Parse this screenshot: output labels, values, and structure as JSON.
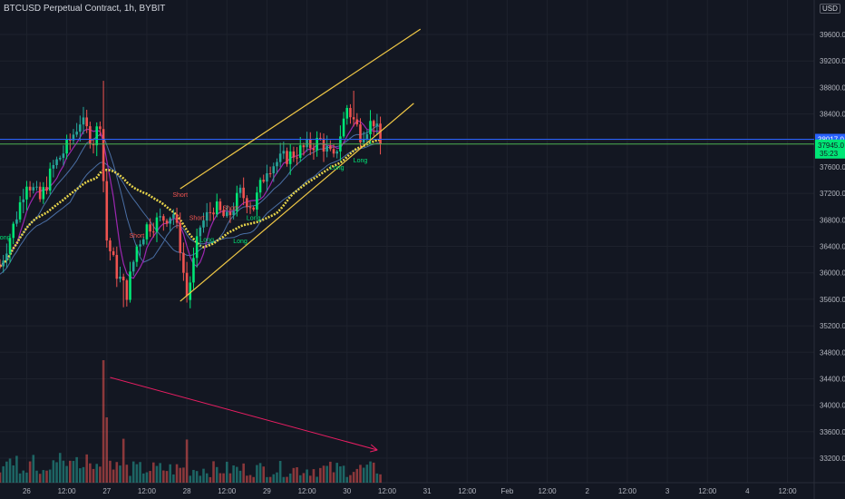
{
  "header": {
    "title": "BTCUSD Perpetual Contract, 1h, BYBIT"
  },
  "currency_unit": "USD",
  "colors": {
    "background": "#131722",
    "grid": "#1e222d",
    "bull": "#26a69a",
    "bull_bright": "#00e676",
    "bear": "#ef5350",
    "price_line_blue": "#2962ff",
    "price_line_green": "#4caf50",
    "trendline": "#f0c846",
    "ma_yellow": "#e6d34a",
    "ma_blue": "#4a6fa5",
    "ma_purple": "#9c27b0",
    "arrow": "#e91e63"
  },
  "price_tags": {
    "upper": "38017.0",
    "lower": "37945.0",
    "lower_sub": "35:23"
  },
  "chart_data": {
    "type": "candlestick",
    "title": "BTCUSD Perpetual Contract, 1h, BYBIT",
    "y_ticks": [
      "39600.0",
      "39200.0",
      "38800.0",
      "38400.0",
      "38000.0",
      "37600.0",
      "37200.0",
      "36800.0",
      "36400.0",
      "36000.0",
      "35600.0",
      "35200.0",
      "34800.0",
      "34400.0",
      "34000.0",
      "33600.0",
      "33200.0"
    ],
    "y_tick_values": [
      39600,
      39200,
      38800,
      38400,
      38000,
      37600,
      37200,
      36800,
      36400,
      36000,
      35600,
      35200,
      34800,
      34400,
      34000,
      33600,
      33200
    ],
    "y_top_partial": "4",
    "x_ticks": [
      "26",
      "12:00",
      "27",
      "12:00",
      "28",
      "12:00",
      "29",
      "12:00",
      "30",
      "12:00",
      "31",
      "12:00",
      "Feb",
      "12:00",
      "2",
      "12:00",
      "3",
      "12:00",
      "4",
      "12:00"
    ],
    "x_tick_hours": [
      0,
      12,
      24,
      36,
      48,
      60,
      72,
      84,
      96,
      108,
      120,
      132,
      144,
      156,
      168,
      180,
      192,
      204,
      216,
      228
    ],
    "ylim": [
      33000,
      40000
    ],
    "x_range_hours": [
      -8,
      236
    ],
    "ohlc_anchors_hours": [
      -8,
      -4,
      0,
      4,
      8,
      12,
      16,
      20,
      22,
      24,
      27,
      30,
      33,
      36,
      40,
      44,
      46,
      48,
      52,
      56,
      60,
      64,
      68,
      72,
      76,
      80,
      84,
      88,
      92,
      96,
      100,
      104,
      106
    ],
    "close_anchors": [
      36100,
      36700,
      37400,
      37100,
      37600,
      37900,
      38300,
      38000,
      38300,
      36500,
      36000,
      35700,
      36400,
      36700,
      36800,
      36900,
      36400,
      35600,
      36700,
      37000,
      36800,
      37200,
      37000,
      37600,
      37700,
      37800,
      37900,
      38000,
      37700,
      38500,
      38100,
      38300,
      37950
    ],
    "last_price": 37945.0,
    "price_line_upper": 38017.0,
    "trendlines": [
      {
        "name": "upper-wedge",
        "from": [
          46,
          37270
        ],
        "to": [
          118,
          39680
        ]
      },
      {
        "name": "lower-wedge",
        "from": [
          46,
          35570
        ],
        "to": [
          116,
          38560
        ]
      }
    ],
    "volume_arrow": {
      "from_hours": 25,
      "to_hours": 104
    },
    "signals": [
      {
        "label": "Long",
        "hour": -7,
        "price": 36500,
        "kind": "long"
      },
      {
        "label": "Short",
        "hour": 33,
        "price": 36530,
        "kind": "short"
      },
      {
        "label": "Short",
        "hour": 46,
        "price": 37150,
        "kind": "short"
      },
      {
        "label": "Short",
        "hour": 51,
        "price": 36800,
        "kind": "short"
      },
      {
        "label": "Long",
        "hour": 54,
        "price": 36470,
        "kind": "long"
      },
      {
        "label": "Short",
        "hour": 61,
        "price": 36950,
        "kind": "short"
      },
      {
        "label": "Long",
        "hour": 64,
        "price": 36450,
        "kind": "long"
      },
      {
        "label": "Long",
        "hour": 68,
        "price": 36800,
        "kind": "long"
      },
      {
        "label": "Long",
        "hour": 93,
        "price": 37560,
        "kind": "long"
      },
      {
        "label": "Long",
        "hour": 100,
        "price": 37670,
        "kind": "long"
      }
    ]
  }
}
